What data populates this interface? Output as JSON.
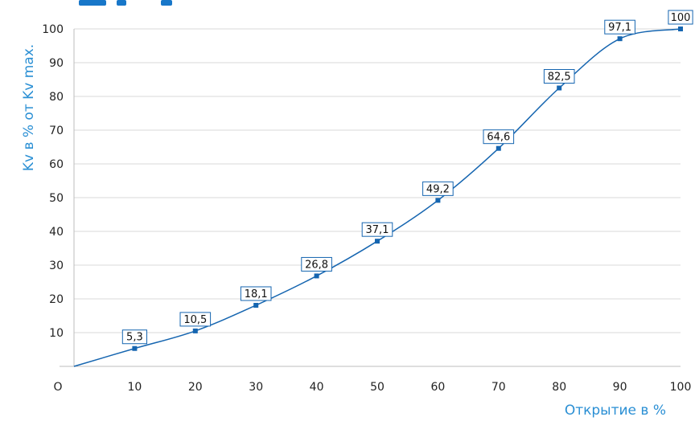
{
  "chart_data": {
    "type": "line",
    "title": "",
    "xlabel": "Открытие в %",
    "ylabel": "Kv в % от Kv max.",
    "x": [
      0,
      10,
      20,
      30,
      40,
      50,
      60,
      70,
      80,
      90,
      100
    ],
    "series": [
      {
        "values": [
          0,
          5.3,
          10.5,
          18.1,
          26.8,
          37.1,
          49.2,
          64.6,
          82.5,
          97.1,
          100
        ],
        "labels": [
          "",
          "5,3",
          "10,5",
          "18,1",
          "26,8",
          "37,1",
          "49,2",
          "64,6",
          "82,5",
          "97,1",
          "100"
        ]
      }
    ],
    "xlim": [
      0,
      100
    ],
    "ylim": [
      0,
      100
    ],
    "x_ticks": [
      "O",
      "10",
      "20",
      "30",
      "40",
      "50",
      "60",
      "70",
      "80",
      "90",
      "100"
    ],
    "y_ticks": [
      "10",
      "20",
      "30",
      "40",
      "50",
      "60",
      "70",
      "80",
      "90",
      "100"
    ],
    "y_tick_values": [
      10,
      20,
      30,
      40,
      50,
      60,
      70,
      80,
      90,
      100
    ],
    "grid": true,
    "colors": {
      "line": "#1565b0",
      "axis_title": "#2a8fd4",
      "grid": "#d9d9d9",
      "heading": "#1877c9"
    }
  }
}
